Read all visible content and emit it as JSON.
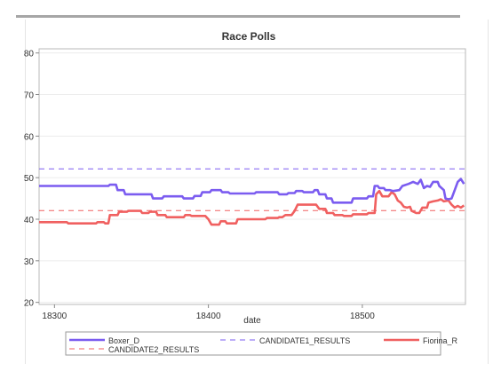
{
  "chart_data": {
    "type": "line",
    "title": "Race Polls",
    "xlabel": "date",
    "ylabel": "",
    "xlim": [
      18290,
      18567
    ],
    "ylim": [
      19.5,
      81
    ],
    "xticks": [
      18300,
      18400,
      18500
    ],
    "yticks": [
      20,
      30,
      40,
      50,
      60,
      70,
      80
    ],
    "grid": true,
    "legend_position": "bottom",
    "series": [
      {
        "name": "Boxer_D",
        "style": "solid",
        "color": "#7b5cf0",
        "points": [
          [
            18290,
            48
          ],
          [
            18335,
            48
          ],
          [
            18336,
            48.3
          ],
          [
            18340,
            48.3
          ],
          [
            18341,
            47
          ],
          [
            18345,
            47
          ],
          [
            18346,
            46
          ],
          [
            18363,
            46
          ],
          [
            18364,
            45
          ],
          [
            18370,
            45
          ],
          [
            18371,
            45.5
          ],
          [
            18383,
            45.5
          ],
          [
            18384,
            45
          ],
          [
            18390,
            45
          ],
          [
            18391,
            45.6
          ],
          [
            18395,
            45.6
          ],
          [
            18396,
            46.5
          ],
          [
            18401,
            46.5
          ],
          [
            18402,
            47
          ],
          [
            18408,
            47
          ],
          [
            18409,
            46.5
          ],
          [
            18413,
            46.5
          ],
          [
            18414,
            46.2
          ],
          [
            18430,
            46.2
          ],
          [
            18431,
            46.5
          ],
          [
            18445,
            46.5
          ],
          [
            18446,
            46
          ],
          [
            18451,
            46
          ],
          [
            18452,
            46.3
          ],
          [
            18456,
            46.3
          ],
          [
            18457,
            46.8
          ],
          [
            18461,
            46.8
          ],
          [
            18462,
            46.5
          ],
          [
            18468,
            46.5
          ],
          [
            18469,
            47
          ],
          [
            18471,
            47
          ],
          [
            18472,
            46
          ],
          [
            18476,
            46
          ],
          [
            18477,
            45
          ],
          [
            18480,
            45
          ],
          [
            18481,
            44
          ],
          [
            18493,
            44
          ],
          [
            18494,
            45
          ],
          [
            18503,
            45
          ],
          [
            18504,
            45.5
          ],
          [
            18507,
            45.5
          ],
          [
            18508,
            48
          ],
          [
            18510,
            48
          ],
          [
            18511,
            47.5
          ],
          [
            18514,
            47.5
          ],
          [
            18515,
            47
          ],
          [
            18518,
            47
          ],
          [
            18520,
            46.8
          ],
          [
            18524,
            47
          ],
          [
            18526,
            48
          ],
          [
            18530,
            48.5
          ],
          [
            18533,
            49
          ],
          [
            18536,
            48.5
          ],
          [
            18538,
            49.5
          ],
          [
            18540,
            47.5
          ],
          [
            18542,
            48
          ],
          [
            18544,
            47.8
          ],
          [
            18546,
            49
          ],
          [
            18549,
            49
          ],
          [
            18550,
            48
          ],
          [
            18553,
            47
          ],
          [
            18554,
            45
          ],
          [
            18556,
            44.8
          ],
          [
            18558,
            45
          ],
          [
            18560,
            47
          ],
          [
            18562,
            49
          ],
          [
            18564,
            49.7
          ],
          [
            18566,
            48.5
          ]
        ]
      },
      {
        "name": "CANDIDATE1_RESULTS",
        "style": "dashed",
        "color": "#7b5cf0",
        "points": [
          [
            18290,
            52.1
          ],
          [
            18567,
            52.1
          ]
        ]
      },
      {
        "name": "Fiorina_R",
        "style": "solid",
        "color": "#f06060",
        "points": [
          [
            18290,
            39.3
          ],
          [
            18308,
            39.3
          ],
          [
            18309,
            39
          ],
          [
            18327,
            39
          ],
          [
            18328,
            39.3
          ],
          [
            18332,
            39.3
          ],
          [
            18333,
            39
          ],
          [
            18335,
            39
          ],
          [
            18336,
            41
          ],
          [
            18341,
            41
          ],
          [
            18342,
            41.8
          ],
          [
            18347,
            41.8
          ],
          [
            18348,
            42
          ],
          [
            18356,
            42
          ],
          [
            18357,
            41.5
          ],
          [
            18361,
            41.5
          ],
          [
            18362,
            41.8
          ],
          [
            18366,
            41.8
          ],
          [
            18367,
            41
          ],
          [
            18372,
            41
          ],
          [
            18373,
            40.5
          ],
          [
            18384,
            40.5
          ],
          [
            18385,
            41
          ],
          [
            18388,
            41
          ],
          [
            18389,
            40.8
          ],
          [
            18398,
            40.8
          ],
          [
            18400,
            40
          ],
          [
            18402,
            38.7
          ],
          [
            18407,
            38.7
          ],
          [
            18408,
            39.5
          ],
          [
            18411,
            39.5
          ],
          [
            18412,
            39
          ],
          [
            18418,
            39
          ],
          [
            18419,
            40
          ],
          [
            18437,
            40
          ],
          [
            18438,
            40.3
          ],
          [
            18445,
            40.3
          ],
          [
            18446,
            40.5
          ],
          [
            18448,
            40.5
          ],
          [
            18450,
            41
          ],
          [
            18454,
            41
          ],
          [
            18456,
            42
          ],
          [
            18458,
            43.5
          ],
          [
            18470,
            43.5
          ],
          [
            18472,
            42.5
          ],
          [
            18476,
            42.5
          ],
          [
            18477,
            41.5
          ],
          [
            18481,
            41.5
          ],
          [
            18482,
            41
          ],
          [
            18487,
            41
          ],
          [
            18488,
            40.8
          ],
          [
            18493,
            40.8
          ],
          [
            18494,
            41.2
          ],
          [
            18503,
            41.2
          ],
          [
            18504,
            41.5
          ],
          [
            18508,
            41.5
          ],
          [
            18509,
            46
          ],
          [
            18511,
            46.8
          ],
          [
            18513,
            45.5
          ],
          [
            18517,
            45.5
          ],
          [
            18519,
            46.5
          ],
          [
            18521,
            46
          ],
          [
            18523,
            44.5
          ],
          [
            18525,
            44
          ],
          [
            18527,
            43
          ],
          [
            18529,
            42.8
          ],
          [
            18531,
            43
          ],
          [
            18532,
            42
          ],
          [
            18535,
            41.5
          ],
          [
            18537,
            41.5
          ],
          [
            18539,
            42.8
          ],
          [
            18542,
            42.8
          ],
          [
            18543,
            44
          ],
          [
            18546,
            44.3
          ],
          [
            18549,
            44.5
          ],
          [
            18551,
            44.8
          ],
          [
            18553,
            44.3
          ],
          [
            18556,
            44.5
          ],
          [
            18558,
            43.5
          ],
          [
            18560,
            42.8
          ],
          [
            18562,
            43.2
          ],
          [
            18564,
            42.8
          ],
          [
            18566,
            43.3
          ]
        ]
      },
      {
        "name": "CANDIDATE2_RESULTS",
        "style": "dashed",
        "color": "#f06060",
        "points": [
          [
            18290,
            42.1
          ],
          [
            18567,
            42.1
          ]
        ]
      }
    ]
  }
}
